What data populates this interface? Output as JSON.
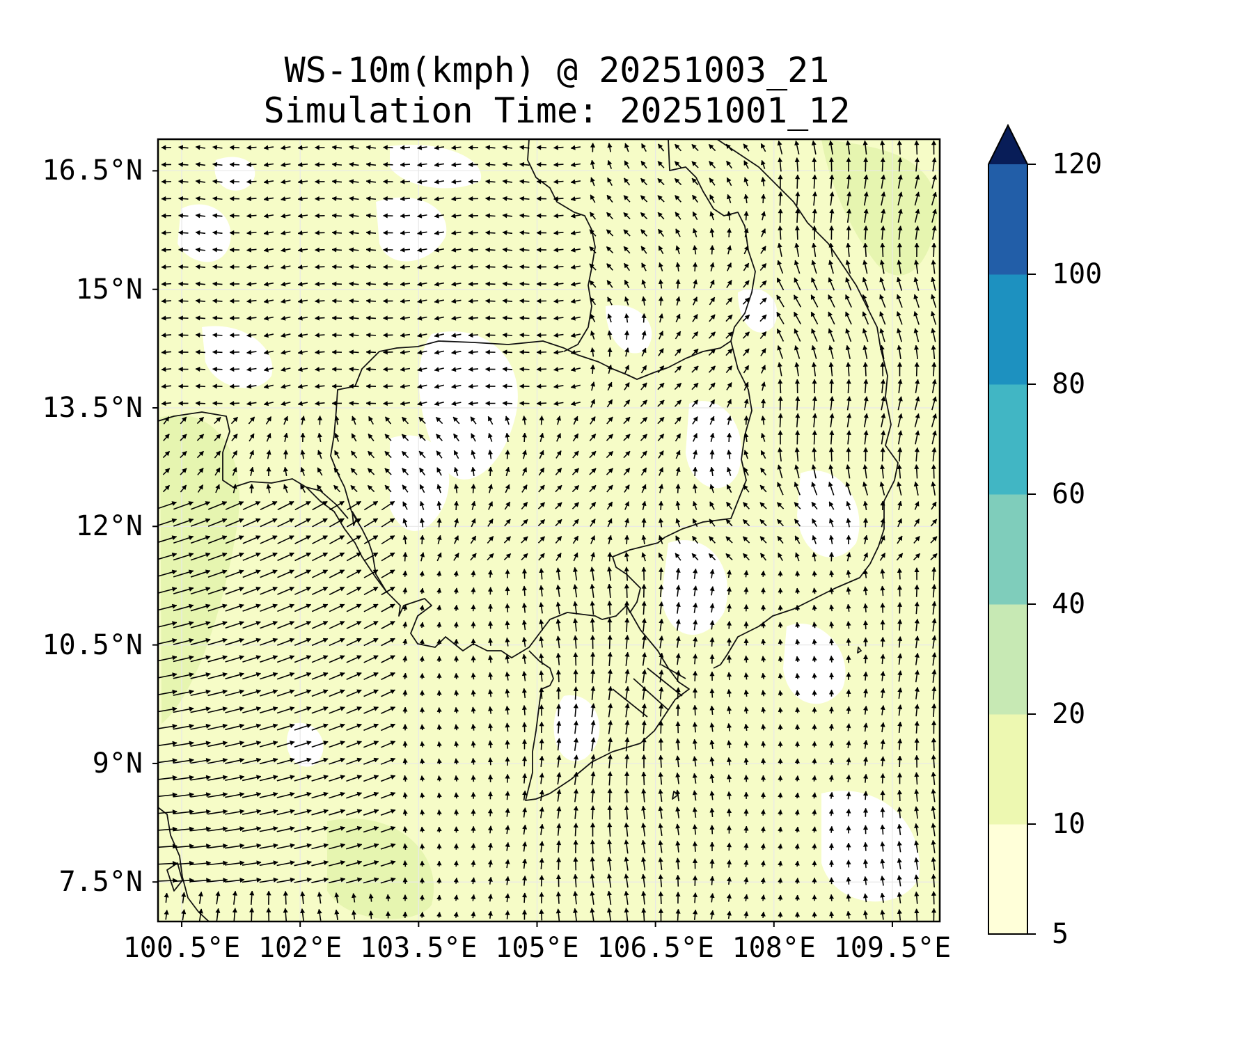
{
  "title": {
    "line1": "WS-10m(kmph) @ 20251003_21",
    "line2": "Simulation Time: 20251001_12"
  },
  "map": {
    "type": "filled-contour with wind vectors",
    "lat_range": [
      7.0,
      16.9
    ],
    "lon_range": [
      100.2,
      110.1
    ],
    "lat_ticks": [
      {
        "value": 16.5,
        "label": "16.5°N"
      },
      {
        "value": 15.0,
        "label": "15°N"
      },
      {
        "value": 13.5,
        "label": "13.5°N"
      },
      {
        "value": 12.0,
        "label": "12°N"
      },
      {
        "value": 10.5,
        "label": "10.5°N"
      },
      {
        "value": 9.0,
        "label": "9°N"
      },
      {
        "value": 7.5,
        "label": "7.5°N"
      }
    ],
    "lon_ticks": [
      {
        "value": 100.5,
        "label": "100.5°E"
      },
      {
        "value": 102.0,
        "label": "102°E"
      },
      {
        "value": 103.5,
        "label": "103.5°E"
      },
      {
        "value": 105.0,
        "label": "105°E"
      },
      {
        "value": 106.5,
        "label": "106.5°E"
      },
      {
        "value": 108.0,
        "label": "108°E"
      },
      {
        "value": 109.5,
        "label": "109.5°E"
      }
    ],
    "grid": true
  },
  "colorbar": {
    "levels": [
      "5",
      "10",
      "20",
      "40",
      "60",
      "80",
      "100",
      "120"
    ],
    "colors": [
      "#ffffd9",
      "#edf8b1",
      "#c7e9b4",
      "#7fcdbb",
      "#41b6c4",
      "#1d91c0",
      "#225ea8",
      "#0c2c84"
    ],
    "extend": "max",
    "extend_color": "#081d58"
  }
}
